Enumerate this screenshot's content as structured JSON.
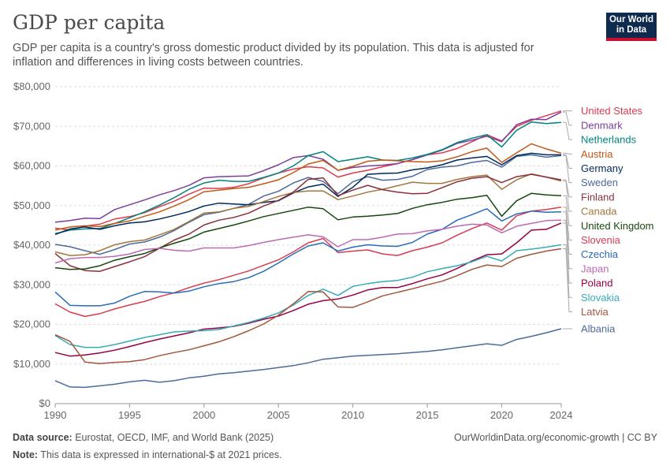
{
  "header": {
    "title": "GDP per capita",
    "subtitle": "GDP per capita is a country's gross domestic product divided by its population. This data is adjusted for inflation and differences in living costs between countries."
  },
  "logo": {
    "line1": "Our World",
    "line2": "in Data",
    "bg": "#0e2a4e",
    "accent": "#c8102e"
  },
  "footer": {
    "source_label": "Data source:",
    "source_text": "Eurostat, OECD, IMF, and World Bank (2025)",
    "url_text": "OurWorldinData.org/economic-growth | CC BY",
    "note_label": "Note:",
    "note_text": "This data is expressed in international-$ at 2021 prices."
  },
  "chart_data": {
    "type": "line",
    "x": [
      1990,
      1991,
      1992,
      1993,
      1994,
      1995,
      1996,
      1997,
      1998,
      1999,
      2000,
      2001,
      2002,
      2003,
      2004,
      2005,
      2006,
      2007,
      2008,
      2009,
      2010,
      2011,
      2012,
      2013,
      2014,
      2015,
      2016,
      2017,
      2018,
      2019,
      2020,
      2021,
      2022,
      2023,
      2024
    ],
    "xlim": [
      1990,
      2024
    ],
    "ylim": [
      0,
      80000
    ],
    "x_ticks": [
      1990,
      1995,
      2000,
      2005,
      2010,
      2015,
      2020,
      2024
    ],
    "y_ticks": [
      0,
      10000,
      20000,
      30000,
      40000,
      50000,
      60000,
      70000,
      80000
    ],
    "y_tick_labels": [
      "$0",
      "$10,000",
      "$20,000",
      "$30,000",
      "$40,000",
      "$50,000",
      "$60,000",
      "$70,000",
      "$80,000"
    ],
    "grid": "horizontal dashed",
    "legend": "right, labels at line ends",
    "series": [
      {
        "name": "United States",
        "color": "#dc3b4f",
        "values": [
          44300,
          43800,
          44800,
          45300,
          46600,
          47200,
          48200,
          49700,
          51100,
          52900,
          54400,
          54300,
          54600,
          55500,
          57000,
          58200,
          59200,
          59800,
          59500,
          57200,
          58200,
          58900,
          59800,
          60600,
          61600,
          62800,
          63300,
          64400,
          66100,
          67900,
          66300,
          70000,
          71500,
          72700,
          73900
        ]
      },
      {
        "name": "Denmark",
        "color": "#7b3f9e",
        "values": [
          45800,
          46200,
          46800,
          46700,
          49000,
          50200,
          51400,
          52700,
          53800,
          55100,
          57000,
          57300,
          57400,
          57500,
          58800,
          60300,
          62100,
          62600,
          61700,
          58900,
          59600,
          60000,
          60200,
          60600,
          61600,
          62800,
          64000,
          65700,
          66500,
          67500,
          66100,
          70400,
          71800,
          71700,
          73600
        ]
      },
      {
        "name": "Netherlands",
        "color": "#00847e",
        "values": [
          42900,
          43800,
          44100,
          44200,
          45500,
          46900,
          48400,
          50100,
          52000,
          54100,
          55700,
          56400,
          56100,
          56100,
          57100,
          58200,
          60000,
          62600,
          63600,
          61100,
          61700,
          62300,
          61500,
          61400,
          62000,
          62900,
          64100,
          65900,
          67000,
          67900,
          64800,
          69000,
          71100,
          70700,
          71000
        ]
      },
      {
        "name": "Austria",
        "color": "#c05917",
        "values": [
          43800,
          44600,
          44900,
          44700,
          45500,
          46100,
          47300,
          48400,
          49900,
          51500,
          53500,
          53900,
          54300,
          54600,
          55500,
          56500,
          58300,
          60500,
          61400,
          58900,
          59900,
          61200,
          61500,
          61300,
          61100,
          61000,
          61300,
          62300,
          63600,
          64500,
          60900,
          63300,
          65600,
          64300,
          63200
        ]
      },
      {
        "name": "Sweden",
        "color": "#4c6a9c",
        "values": [
          40200,
          39600,
          38600,
          37700,
          38900,
          40300,
          40800,
          42000,
          43700,
          45800,
          47700,
          48300,
          49300,
          50300,
          52400,
          53600,
          55700,
          57100,
          56100,
          53000,
          56000,
          57300,
          56400,
          56600,
          57400,
          59100,
          59700,
          60000,
          60900,
          61400,
          59700,
          62400,
          62800,
          62200,
          62600
        ]
      },
      {
        "name": "Germany",
        "color": "#00295b",
        "values": [
          42700,
          44100,
          44600,
          44000,
          44900,
          45600,
          45900,
          46600,
          47500,
          48500,
          49900,
          50600,
          50400,
          50200,
          50800,
          51200,
          53200,
          54700,
          55400,
          52300,
          54600,
          57900,
          58100,
          58200,
          59000,
          59500,
          60300,
          61500,
          62000,
          62400,
          60300,
          62600,
          63200,
          62800,
          62800
        ]
      },
      {
        "name": "Canada",
        "color": "#a2763d",
        "values": [
          38300,
          37400,
          37600,
          38600,
          40100,
          40900,
          41300,
          42600,
          44000,
          46000,
          48100,
          48400,
          49300,
          49800,
          51000,
          52300,
          53300,
          53700,
          53700,
          51500,
          52400,
          53400,
          54100,
          55000,
          55900,
          55600,
          55600,
          56600,
          57300,
          57700,
          54100,
          56500,
          58000,
          57200,
          56200
        ]
      },
      {
        "name": "Finland",
        "color": "#883039",
        "values": [
          37900,
          34800,
          33600,
          33400,
          34600,
          35800,
          37100,
          39200,
          41300,
          42800,
          45100,
          46300,
          47000,
          48100,
          49900,
          51300,
          53400,
          56600,
          57000,
          52500,
          53900,
          55100,
          54000,
          53400,
          53000,
          53100,
          54500,
          56000,
          56900,
          57300,
          55800,
          57300,
          57900,
          57200,
          56500
        ]
      },
      {
        "name": "United Kingdom",
        "color": "#18470f",
        "values": [
          34300,
          33900,
          34000,
          34800,
          36200,
          37100,
          37900,
          39300,
          40500,
          41600,
          43300,
          44200,
          45100,
          46100,
          47200,
          48000,
          48800,
          49600,
          49200,
          46400,
          47100,
          47300,
          47600,
          48000,
          49300,
          50200,
          50800,
          51600,
          52000,
          52600,
          47300,
          51200,
          53100,
          52700,
          52500
        ]
      },
      {
        "name": "Slovenia",
        "color": "#d73c50",
        "values": [
          25200,
          23100,
          22000,
          22700,
          23900,
          24900,
          25800,
          27000,
          28000,
          29300,
          30400,
          31300,
          32400,
          33500,
          34900,
          36300,
          38300,
          40600,
          41700,
          38100,
          38500,
          38800,
          37800,
          37400,
          38600,
          39500,
          40600,
          42500,
          44200,
          45600,
          43800,
          47400,
          48600,
          49000,
          49600
        ]
      },
      {
        "name": "Czechia",
        "color": "#286bbb",
        "values": [
          28200,
          24800,
          24700,
          24700,
          25400,
          27100,
          28300,
          28200,
          27900,
          28400,
          29500,
          30300,
          30800,
          31800,
          33400,
          35500,
          37800,
          39800,
          40600,
          38500,
          39500,
          40100,
          39800,
          39700,
          40700,
          42800,
          44000,
          46300,
          47700,
          49200,
          46100,
          47900,
          48600,
          48300,
          48400
        ]
      },
      {
        "name": "Japan",
        "color": "#bc6ab3",
        "values": [
          35500,
          36600,
          36900,
          36900,
          37200,
          37800,
          38900,
          39200,
          38700,
          38500,
          39300,
          39300,
          39300,
          39900,
          40700,
          41400,
          42000,
          42600,
          42100,
          39600,
          41400,
          41400,
          42000,
          42800,
          42900,
          43600,
          44000,
          44800,
          45300,
          45100,
          43100,
          44800,
          45500,
          46200,
          46300
        ]
      },
      {
        "name": "Poland",
        "color": "#970046",
        "values": [
          12900,
          12000,
          12300,
          12800,
          13500,
          14400,
          15400,
          16300,
          17100,
          17900,
          18800,
          19100,
          19500,
          20300,
          21300,
          22100,
          23500,
          25100,
          26000,
          26400,
          27400,
          28700,
          29300,
          29300,
          30300,
          31500,
          32500,
          34100,
          36000,
          37600,
          37800,
          40600,
          43800,
          44000,
          45600
        ]
      },
      {
        "name": "Slovakia",
        "color": "#38aaba",
        "values": [
          17200,
          14900,
          14200,
          14200,
          14900,
          15800,
          16700,
          17400,
          18100,
          18300,
          18400,
          18700,
          19600,
          20500,
          21600,
          22900,
          24900,
          27300,
          28900,
          27300,
          29600,
          30300,
          30800,
          31100,
          31900,
          33300,
          34100,
          34800,
          35800,
          37200,
          36000,
          38600,
          39000,
          39500,
          40100
        ]
      },
      {
        "name": "Latvia",
        "color": "#a2553a",
        "values": [
          17400,
          15700,
          10500,
          10100,
          10400,
          10600,
          11100,
          12100,
          12900,
          13600,
          14600,
          15600,
          16900,
          18400,
          20100,
          22300,
          25200,
          28300,
          28200,
          24400,
          24300,
          25700,
          27200,
          28100,
          29000,
          30000,
          30900,
          32300,
          33900,
          35000,
          34600,
          36700,
          37700,
          38500,
          39100
        ]
      },
      {
        "name": "Albania",
        "color": "#4c6a9c",
        "values": [
          5800,
          4200,
          4100,
          4500,
          4900,
          5500,
          5900,
          5400,
          5800,
          6500,
          6900,
          7500,
          7800,
          8200,
          8600,
          9100,
          9600,
          10300,
          11200,
          11600,
          12000,
          12200,
          12400,
          12600,
          12900,
          13200,
          13600,
          14100,
          14600,
          15100,
          14700,
          16200,
          17000,
          17900,
          18900
        ]
      }
    ]
  }
}
